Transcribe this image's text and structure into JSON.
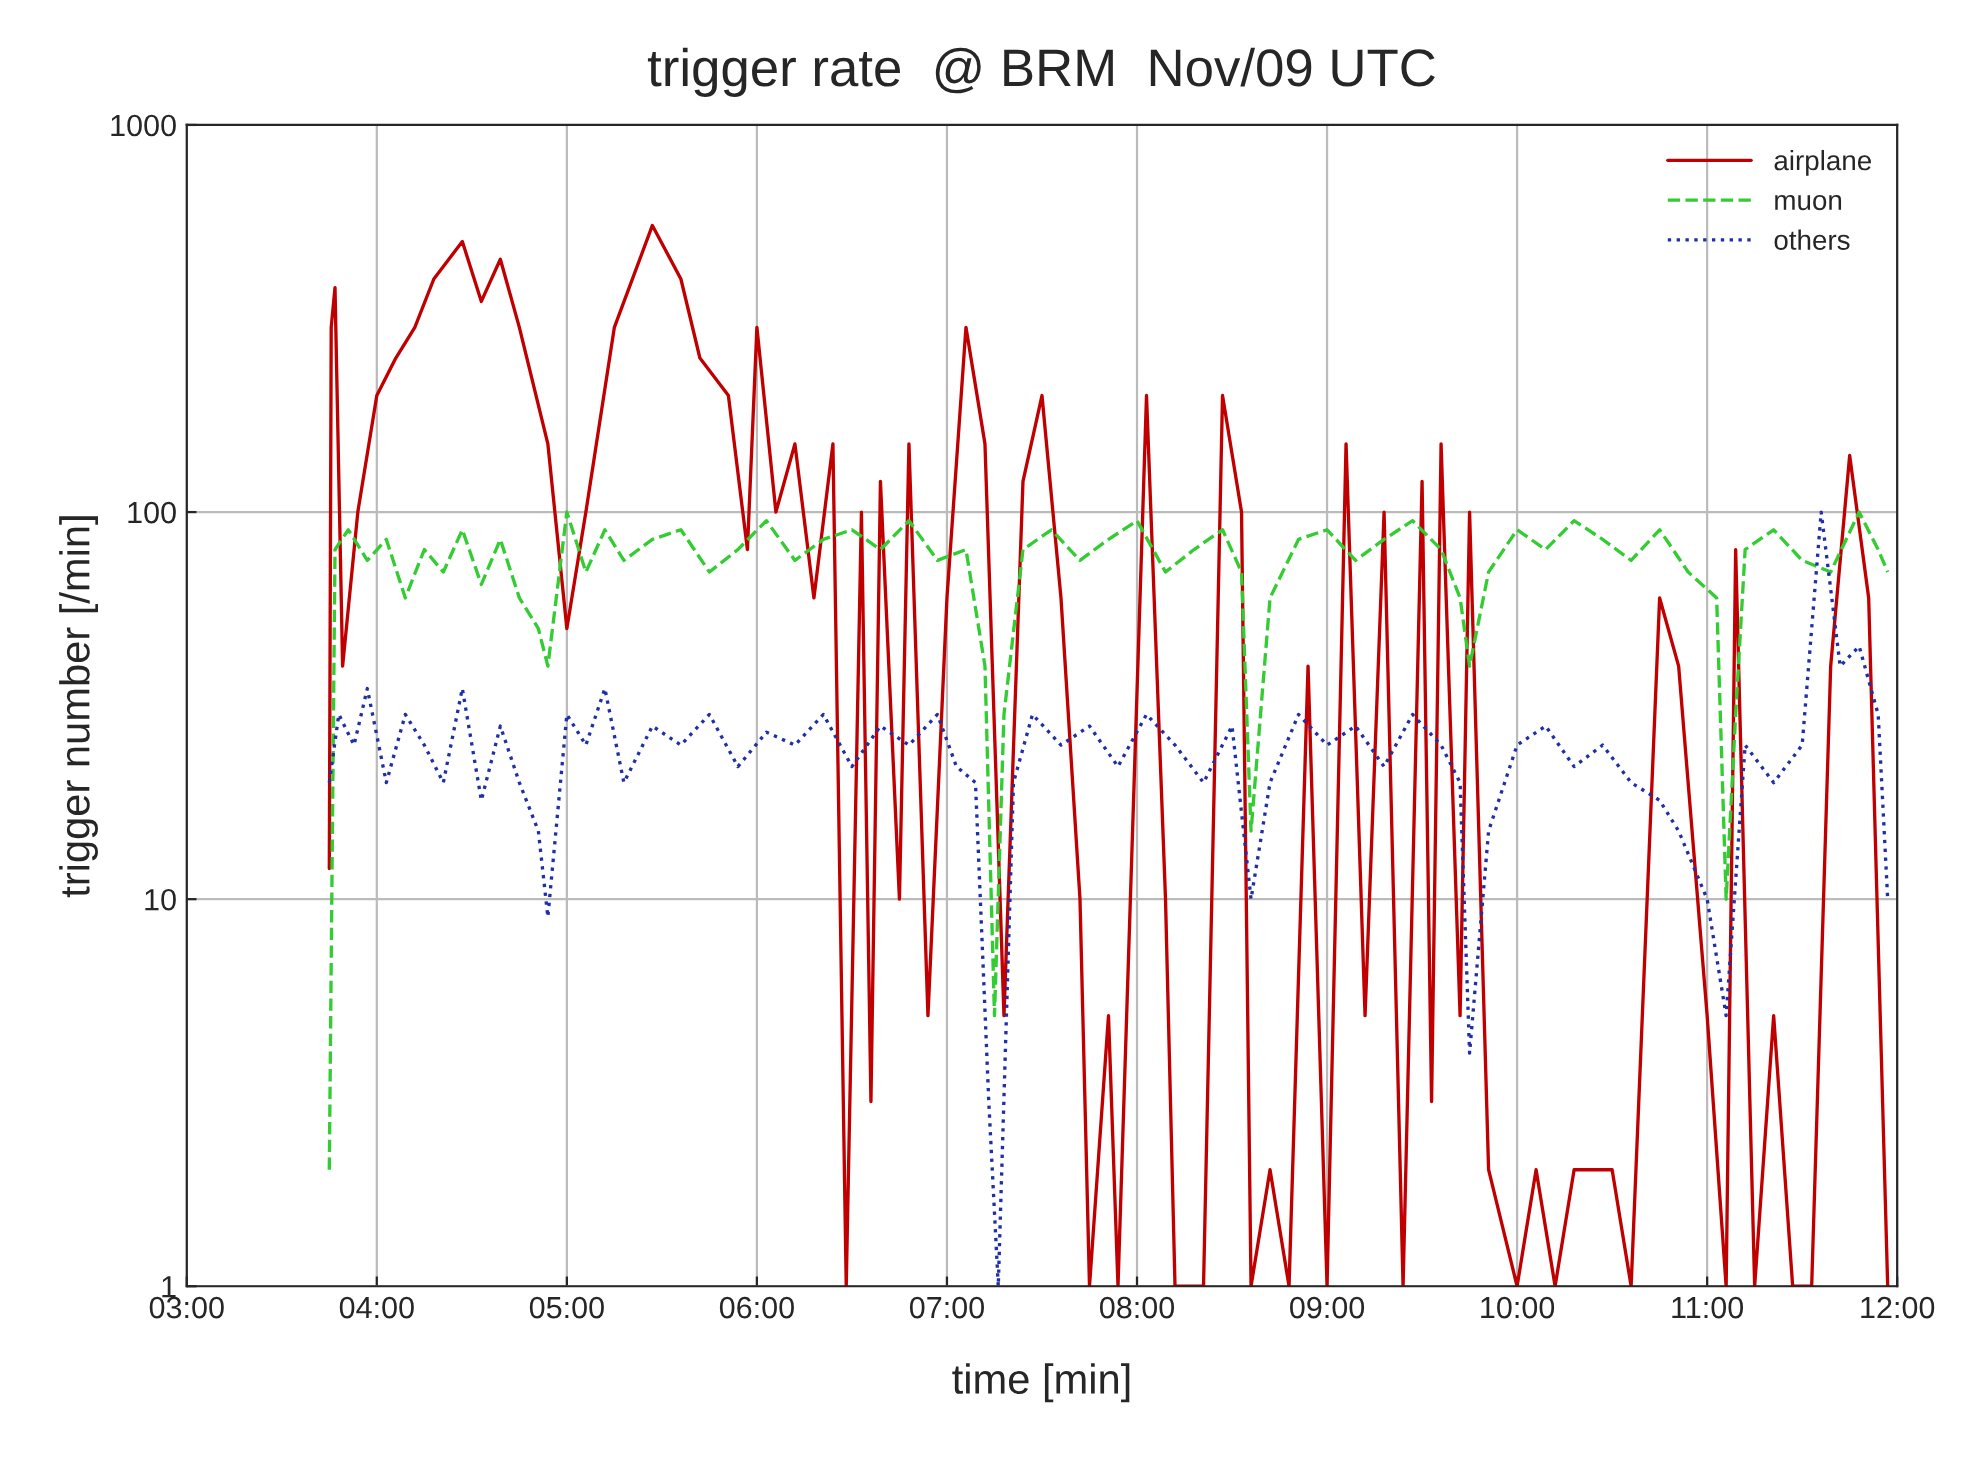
{
  "chart_data": {
    "type": "line",
    "title": "trigger rate  @ BRM  Nov/09 UTC",
    "xlabel": "time [min]",
    "ylabel": "trigger number [/min]",
    "log": "y",
    "grid": true,
    "legend": "top right",
    "xlim": [
      3,
      12
    ],
    "xticks": [
      {
        "value": 3,
        "label": "03:00"
      },
      {
        "value": 4,
        "label": "04:00"
      },
      {
        "value": 5,
        "label": "05:00"
      },
      {
        "value": 6,
        "label": "06:00"
      },
      {
        "value": 7,
        "label": "07:00"
      },
      {
        "value": 8,
        "label": "08:00"
      },
      {
        "value": 9,
        "label": "09:00"
      },
      {
        "value": 10,
        "label": "10:00"
      },
      {
        "value": 11,
        "label": "11:00"
      },
      {
        "value": 12,
        "label": "12:00"
      }
    ],
    "ylim": [
      1,
      1000
    ],
    "yticks": [
      1,
      10,
      100,
      1000
    ],
    "series": [
      {
        "name": "airplane",
        "color": "#c00000",
        "line_style": "solid",
        "x": [
          3.75,
          3.76,
          3.78,
          3.82,
          3.9,
          4.0,
          4.1,
          4.2,
          4.3,
          4.45,
          4.55,
          4.65,
          4.75,
          4.9,
          5.0,
          5.1,
          5.25,
          5.45,
          5.6,
          5.7,
          5.85,
          5.95,
          6.0,
          6.1,
          6.2,
          6.3,
          6.4,
          6.47,
          6.55,
          6.6,
          6.65,
          6.75,
          6.8,
          6.9,
          7.0,
          7.1,
          7.2,
          7.3,
          7.4,
          7.5,
          7.6,
          7.7,
          7.75,
          7.85,
          7.9,
          8.05,
          8.15,
          8.2,
          8.35,
          8.45,
          8.55,
          8.6,
          8.7,
          8.8,
          8.9,
          9.0,
          9.1,
          9.2,
          9.3,
          9.4,
          9.5,
          9.55,
          9.6,
          9.7,
          9.75,
          9.85,
          10.0,
          10.1,
          10.2,
          10.3,
          10.5,
          10.6,
          10.75,
          10.85,
          10.9,
          11.0,
          11.1,
          11.15,
          11.25,
          11.35,
          11.45,
          11.55,
          11.65,
          11.75,
          11.85,
          11.95
        ],
        "values": [
          12,
          300,
          380,
          40,
          100,
          200,
          250,
          300,
          400,
          500,
          350,
          450,
          300,
          150,
          50,
          100,
          300,
          550,
          400,
          250,
          200,
          80,
          300,
          100,
          150,
          60,
          150,
          1,
          100,
          3,
          120,
          10,
          150,
          5,
          60,
          300,
          150,
          5,
          120,
          200,
          60,
          10,
          1,
          5,
          1,
          200,
          10,
          1,
          1,
          200,
          100,
          1,
          2,
          1,
          40,
          1,
          150,
          5,
          100,
          1,
          120,
          3,
          150,
          5,
          100,
          2,
          1,
          2,
          1,
          2,
          2,
          1,
          60,
          40,
          20,
          5,
          1,
          80,
          1,
          5,
          1,
          1,
          40,
          140,
          60,
          1
        ]
      },
      {
        "name": "muon",
        "color": "#33cc33",
        "line_style": "dashed",
        "x": [
          3.75,
          3.78,
          3.85,
          3.95,
          4.05,
          4.15,
          4.25,
          4.35,
          4.45,
          4.55,
          4.65,
          4.75,
          4.85,
          4.9,
          5.0,
          5.1,
          5.2,
          5.3,
          5.45,
          5.6,
          5.75,
          5.9,
          6.05,
          6.2,
          6.35,
          6.5,
          6.65,
          6.8,
          6.95,
          7.1,
          7.2,
          7.25,
          7.3,
          7.4,
          7.55,
          7.7,
          7.85,
          8.0,
          8.15,
          8.3,
          8.45,
          8.55,
          8.6,
          8.7,
          8.85,
          9.0,
          9.15,
          9.3,
          9.45,
          9.6,
          9.7,
          9.75,
          9.85,
          10.0,
          10.15,
          10.3,
          10.45,
          10.6,
          10.75,
          10.9,
          11.05,
          11.1,
          11.15,
          11.2,
          11.35,
          11.5,
          11.65,
          11.8,
          11.9,
          11.95
        ],
        "values": [
          2,
          80,
          90,
          75,
          85,
          60,
          80,
          70,
          90,
          65,
          85,
          60,
          50,
          40,
          100,
          70,
          90,
          75,
          85,
          90,
          70,
          80,
          95,
          75,
          85,
          90,
          80,
          95,
          75,
          80,
          40,
          5,
          30,
          80,
          90,
          75,
          85,
          95,
          70,
          80,
          90,
          70,
          15,
          60,
          85,
          90,
          75,
          85,
          95,
          80,
          60,
          40,
          70,
          90,
          80,
          95,
          85,
          75,
          90,
          70,
          60,
          10,
          30,
          80,
          90,
          75,
          70,
          100,
          80,
          70
        ]
      },
      {
        "name": "others",
        "color": "#1f2fa8",
        "line_style": "dotted",
        "x": [
          3.75,
          3.8,
          3.88,
          3.95,
          4.05,
          4.15,
          4.25,
          4.35,
          4.45,
          4.55,
          4.65,
          4.75,
          4.85,
          4.9,
          5.0,
          5.1,
          5.2,
          5.3,
          5.45,
          5.6,
          5.75,
          5.9,
          6.05,
          6.2,
          6.35,
          6.5,
          6.65,
          6.8,
          6.95,
          7.05,
          7.15,
          7.22,
          7.27,
          7.35,
          7.45,
          7.6,
          7.75,
          7.9,
          8.05,
          8.2,
          8.35,
          8.5,
          8.6,
          8.7,
          8.85,
          9.0,
          9.15,
          9.3,
          9.45,
          9.6,
          9.7,
          9.75,
          9.85,
          10.0,
          10.15,
          10.3,
          10.45,
          10.6,
          10.75,
          10.85,
          11.0,
          11.1,
          11.2,
          11.35,
          11.5,
          11.6,
          11.7,
          11.8,
          11.9,
          11.95
        ],
        "values": [
          20,
          30,
          25,
          35,
          20,
          30,
          25,
          20,
          35,
          18,
          28,
          20,
          15,
          9,
          30,
          25,
          35,
          20,
          28,
          25,
          30,
          22,
          27,
          25,
          30,
          22,
          28,
          25,
          30,
          22,
          20,
          3,
          1,
          20,
          30,
          25,
          28,
          22,
          30,
          25,
          20,
          28,
          10,
          20,
          30,
          25,
          28,
          22,
          30,
          25,
          20,
          4,
          15,
          25,
          28,
          22,
          25,
          20,
          18,
          15,
          10,
          5,
          25,
          20,
          25,
          100,
          40,
          45,
          30,
          10
        ]
      }
    ]
  }
}
